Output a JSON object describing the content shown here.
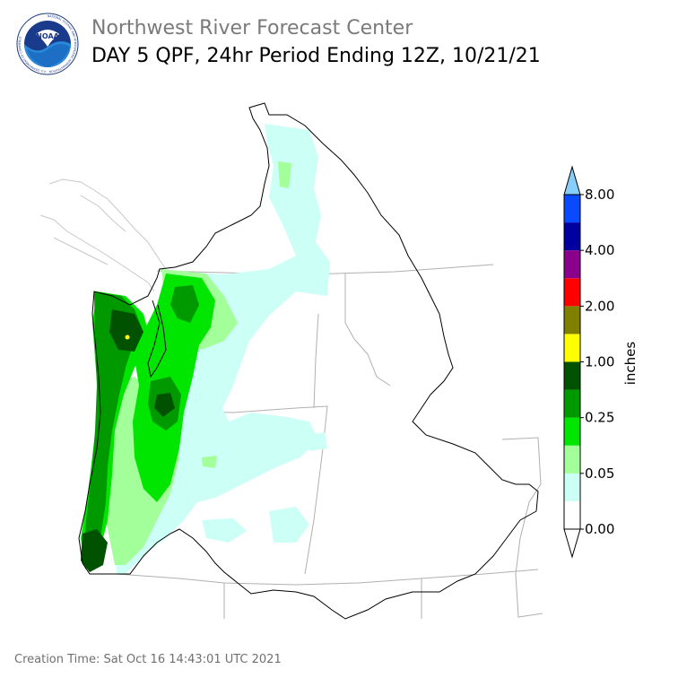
{
  "header": {
    "agency": "Northwest River Forecast Center",
    "product": "DAY 5 QPF, 24hr Period Ending 12Z, 10/21/21",
    "logo_text": "NOAA",
    "logo_ring_text": "NATIONAL OCEANIC AND ATMOSPHERIC ADMINISTRATION · U.S. DEPARTMENT OF COMMERCE"
  },
  "legend": {
    "unit_label": "inches",
    "ticks": [
      "8.00",
      "4.00",
      "2.00",
      "1.00",
      "0.25",
      "0.05",
      "0.00"
    ],
    "bins": [
      {
        "color": "#ffffff"
      },
      {
        "color": "#ccfff5"
      },
      {
        "color": "#a3ff99"
      },
      {
        "color": "#00e600"
      },
      {
        "color": "#009900"
      },
      {
        "color": "#005200"
      },
      {
        "color": "#ffff00"
      },
      {
        "color": "#808000"
      },
      {
        "color": "#ff0000"
      },
      {
        "color": "#8b008b"
      },
      {
        "color": "#0000a0"
      },
      {
        "color": "#0a4aff"
      }
    ],
    "over_color": "#87cefa",
    "under_color": "#ffffff"
  },
  "colors": {
    "basin_outline": "#000000",
    "state_border": "#b0b0b0",
    "coast_outline": "#c8c8c8"
  },
  "footer": {
    "label": "Creation Time:",
    "value": "Sat Oct 16 14:43:01 UTC 2021"
  }
}
